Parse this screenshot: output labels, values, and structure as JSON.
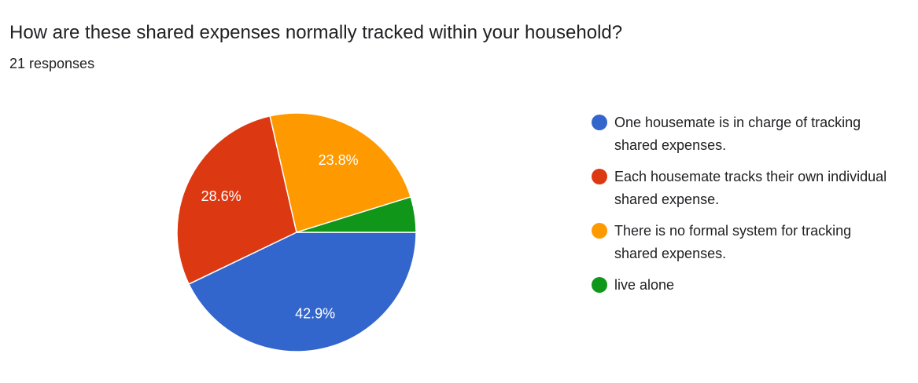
{
  "header": {
    "title": "How are these shared expenses normally tracked within your household?",
    "responses": "21 responses"
  },
  "colors": {
    "blue": "#3366cc",
    "red": "#dc3912",
    "orange": "#ff9900",
    "green": "#109618"
  },
  "chart_data": {
    "type": "pie",
    "total_responses": 21,
    "slices": [
      {
        "label": "One housemate is in charge of tracking shared expenses.",
        "percent": 42.9,
        "display": "42.9%",
        "color": "#3366cc"
      },
      {
        "label": "Each housemate tracks their own individual shared expense.",
        "percent": 28.6,
        "display": "28.6%",
        "color": "#dc3912"
      },
      {
        "label": "There is no formal system for tracking shared expenses.",
        "percent": 23.8,
        "display": "23.8%",
        "color": "#ff9900"
      },
      {
        "label": "live alone",
        "percent": 4.8,
        "display": "",
        "color": "#109618"
      }
    ],
    "legend_position": "right"
  }
}
